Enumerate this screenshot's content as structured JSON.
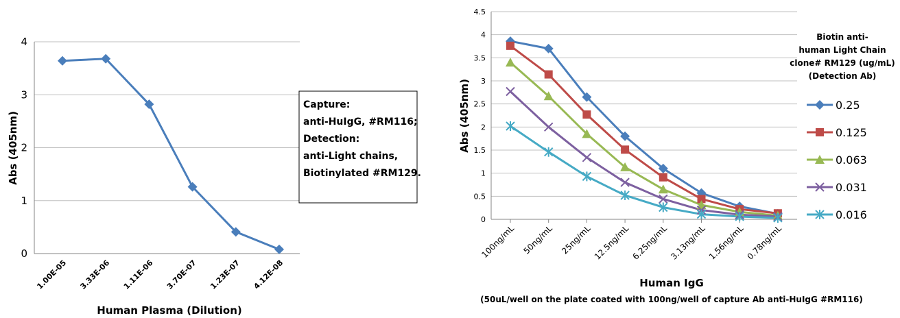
{
  "chart_data": [
    {
      "type": "line",
      "categories": [
        "1.00E-05",
        "3.33E-06",
        "1.11E-06",
        "3.70E-07",
        "1.23E-07",
        "4.12E-08"
      ],
      "series": [
        {
          "values": [
            3.64,
            3.68,
            2.82,
            1.26,
            0.41,
            0.08
          ],
          "color": "#4a7ebb",
          "marker": "diamond"
        }
      ],
      "yticks": [
        "0",
        "1",
        "2",
        "3",
        "4"
      ],
      "ylim": [
        0,
        4
      ],
      "xlabel": "Human Plasma (Dilution)",
      "ylabel": "Abs (405nm)",
      "grid": true,
      "annotation": [
        "Capture:",
        "anti-HuIgG, #RM116;",
        "Detection:",
        "anti-Light chains,",
        "Biotinylated #RM129."
      ]
    },
    {
      "type": "line",
      "categories": [
        "100ng/mL",
        "50ng/mL",
        "25ng/mL",
        "12.5ng/mL",
        "6.25ng/mL",
        "3.13ng/mL",
        "1.56ng/mL",
        "0.78ng/mL"
      ],
      "series": [
        {
          "name": "0.25",
          "values": [
            3.86,
            3.7,
            2.65,
            1.8,
            1.1,
            0.57,
            0.28,
            0.12
          ],
          "color": "#4a7ebb",
          "marker": "diamond"
        },
        {
          "name": "0.125",
          "values": [
            3.76,
            3.14,
            2.27,
            1.51,
            0.91,
            0.44,
            0.22,
            0.13
          ],
          "color": "#be4b48",
          "marker": "square"
        },
        {
          "name": "0.063",
          "values": [
            3.4,
            2.67,
            1.85,
            1.13,
            0.65,
            0.31,
            0.16,
            0.08
          ],
          "color": "#98b954",
          "marker": "triangle"
        },
        {
          "name": "0.031",
          "values": [
            2.77,
            2.0,
            1.34,
            0.8,
            0.44,
            0.2,
            0.1,
            0.06
          ],
          "color": "#7d60a0",
          "marker": "x"
        },
        {
          "name": "0.016",
          "values": [
            2.02,
            1.46,
            0.93,
            0.52,
            0.26,
            0.11,
            0.06,
            0.03
          ],
          "color": "#46aac5",
          "marker": "star"
        }
      ],
      "yticks": [
        "0",
        "0.5",
        "1",
        "1.5",
        "2",
        "2.5",
        "3",
        "3.5",
        "4",
        "4.5"
      ],
      "ylim": [
        0,
        4.5
      ],
      "xlabel": "Human IgG",
      "xsublabel": "(50uL/well on the plate coated with 100ng/well of capture Ab anti-HuIgG #RM116)",
      "ylabel": "Abs (405nm)",
      "grid": true,
      "legend_title": [
        "Biotin anti-",
        "human Light Chain",
        "clone# RM129 (ug/mL)",
        "(Detection Ab)"
      ],
      "legend_position": "right"
    }
  ]
}
